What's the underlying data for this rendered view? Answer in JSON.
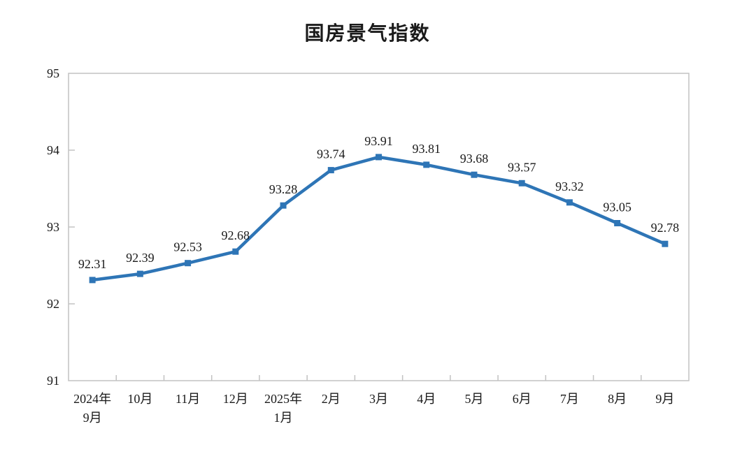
{
  "title": "国房景气指数",
  "chart_data": {
    "type": "line",
    "title": "国房景气指数",
    "categories": [
      "2024年\n9月",
      "10月",
      "11月",
      "12月",
      "2025年\n1月",
      "2月",
      "3月",
      "4月",
      "5月",
      "6月",
      "7月",
      "8月",
      "9月"
    ],
    "values": [
      92.31,
      92.39,
      92.53,
      92.68,
      93.28,
      93.74,
      93.91,
      93.81,
      93.68,
      93.57,
      93.32,
      93.05,
      92.78
    ],
    "data_labels": [
      "92.31",
      "92.39",
      "92.53",
      "92.68",
      "93.28",
      "93.74",
      "93.91",
      "93.81",
      "93.68",
      "93.57",
      "93.32",
      "93.05",
      "92.78"
    ],
    "xlabel": "",
    "ylabel": "",
    "ylim": [
      91,
      95
    ],
    "yticks": [
      "95",
      "94",
      "93",
      "92",
      "91"
    ],
    "grid": false,
    "legend_position": "none",
    "marker": "square",
    "line_color": "#2E75B6"
  },
  "colors": {
    "line": "#2E75B6",
    "axis": "#c2c2c2",
    "text": "#1a1a1a",
    "background": "#ffffff"
  }
}
